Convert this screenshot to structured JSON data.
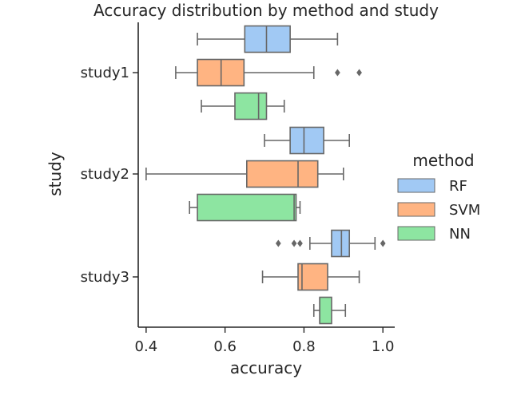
{
  "chart_data": {
    "type": "boxplot",
    "orientation": "horizontal",
    "title": "Accuracy distribution by method and study",
    "xlabel": "accuracy",
    "ylabel": "study",
    "xlim": [
      0.38,
      1.03
    ],
    "xticks": [
      0.4,
      0.6,
      0.8,
      1.0
    ],
    "xtick_labels": [
      "0.4",
      "0.6",
      "0.8",
      "1.0"
    ],
    "categories": [
      "study1",
      "study2",
      "study3"
    ],
    "legend": {
      "title": "method",
      "placement": "center-right",
      "entries": [
        "RF",
        "SVM",
        "NN"
      ]
    },
    "series": [
      {
        "name": "RF",
        "color": "#a1c9f4",
        "boxes": [
          {
            "whisker_low": 0.53,
            "q1": 0.65,
            "median": 0.705,
            "q3": 0.765,
            "whisker_high": 0.885,
            "outliers": []
          },
          {
            "whisker_low": 0.7,
            "q1": 0.765,
            "median": 0.8,
            "q3": 0.85,
            "whisker_high": 0.915,
            "outliers": []
          },
          {
            "whisker_low": 0.815,
            "q1": 0.87,
            "median": 0.895,
            "q3": 0.915,
            "whisker_high": 0.98,
            "outliers": [
              0.735,
              0.775,
              0.79,
              1.0
            ]
          }
        ]
      },
      {
        "name": "SVM",
        "color": "#ffb482",
        "boxes": [
          {
            "whisker_low": 0.475,
            "q1": 0.53,
            "median": 0.59,
            "q3": 0.648,
            "whisker_high": 0.825,
            "outliers": [
              0.885,
              0.94
            ]
          },
          {
            "whisker_low": 0.4,
            "q1": 0.655,
            "median": 0.785,
            "q3": 0.835,
            "whisker_high": 0.9,
            "outliers": []
          },
          {
            "whisker_low": 0.695,
            "q1": 0.785,
            "median": 0.795,
            "q3": 0.86,
            "whisker_high": 0.94,
            "outliers": []
          }
        ]
      },
      {
        "name": "NN",
        "color": "#8de5a1",
        "boxes": [
          {
            "whisker_low": 0.54,
            "q1": 0.625,
            "median": 0.685,
            "q3": 0.705,
            "whisker_high": 0.75,
            "outliers": []
          },
          {
            "whisker_low": 0.51,
            "q1": 0.53,
            "median": 0.775,
            "q3": 0.78,
            "whisker_high": 0.79,
            "outliers": []
          },
          {
            "whisker_low": 0.825,
            "q1": 0.84,
            "median": 0.84,
            "q3": 0.87,
            "whisker_high": 0.905,
            "outliers": []
          }
        ]
      }
    ],
    "grid": false,
    "line_color": "#676767"
  }
}
